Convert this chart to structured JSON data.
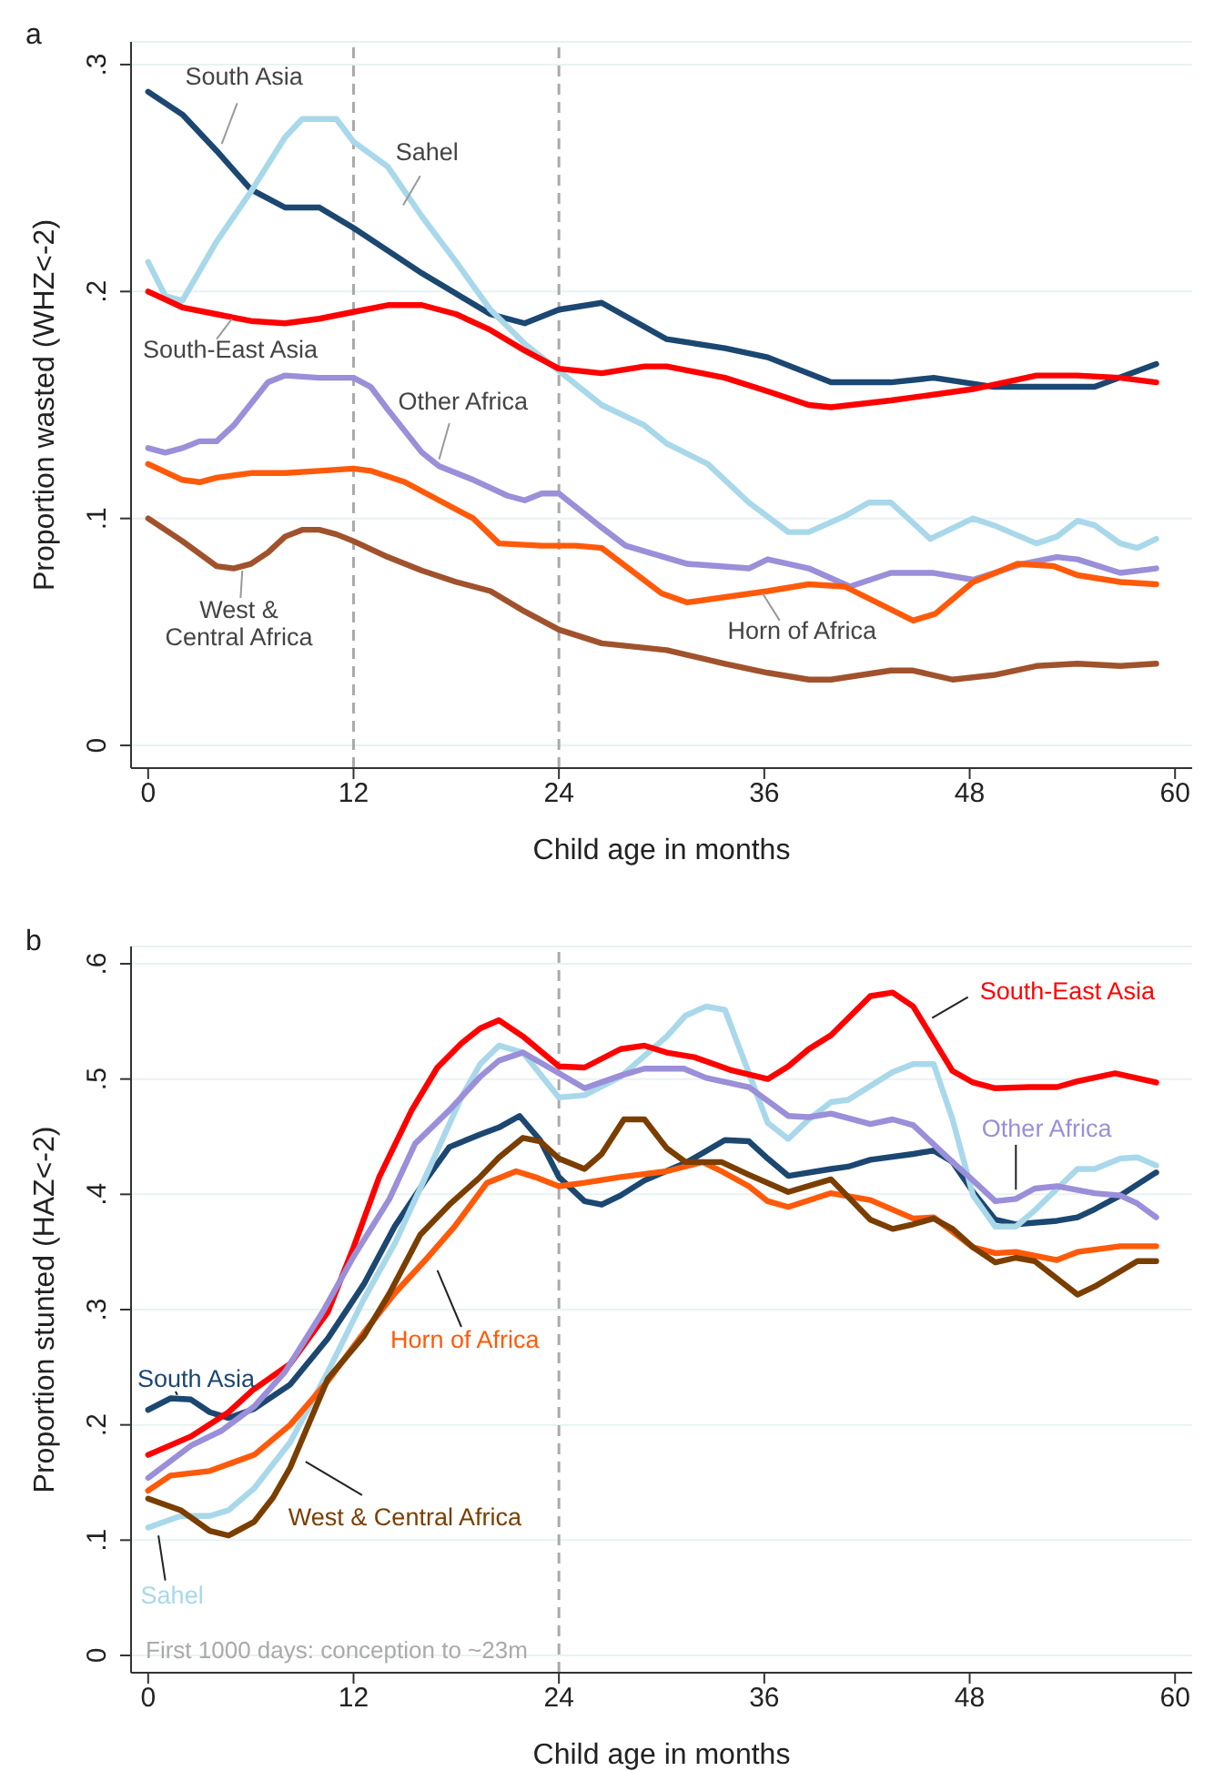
{
  "chart_data": [
    {
      "type": "line",
      "title": "a",
      "xlabel": "Child age in months",
      "ylabel": "Proportion wasted (WHZ<-2)",
      "xlim": [
        -1,
        61
      ],
      "xticks": [
        0,
        12,
        24,
        36,
        48,
        60
      ],
      "ylim": [
        -0.01,
        0.31
      ],
      "yticks": [
        0,
        {
          "value": 0.1,
          "label": ".1"
        },
        {
          "value": 0.2,
          "label": ".2"
        },
        {
          "value": 0.3,
          "label": ".3"
        }
      ],
      "grid": "y",
      "ref_lines": [
        {
          "axis": "x",
          "value": 12,
          "color": "#aaaaaa",
          "line_style": "dashed"
        },
        {
          "axis": "x",
          "value": 24,
          "color": "#aaaaaa",
          "line_style": "dashed"
        }
      ],
      "series": [
        {
          "name": "South Asia",
          "color": "#1b4771",
          "x": [
            0,
            2,
            4,
            6,
            8,
            10,
            12,
            14,
            16,
            18,
            20,
            22,
            24,
            26.5,
            30.3,
            33.7,
            36.2,
            39.9,
            43.4,
            45.9,
            49.4,
            52,
            55.3,
            58.9
          ],
          "values": [
            0.288,
            0.278,
            0.262,
            0.245,
            0.237,
            0.237,
            0.228,
            0.218,
            0.208,
            0.199,
            0.19,
            0.186,
            0.192,
            0.195,
            0.179,
            0.175,
            0.171,
            0.16,
            0.16,
            0.162,
            0.158,
            0.158,
            0.158,
            0.168
          ]
        },
        {
          "name": "Sahel",
          "color": "#a8d8ea",
          "x": [
            0,
            1,
            2,
            4,
            6,
            8,
            9,
            11,
            12,
            14,
            16,
            18,
            20,
            22,
            24,
            26.5,
            29,
            30.3,
            32.7,
            35.1,
            37.4,
            38.6,
            40.7,
            42.1,
            43.4,
            45.7,
            48.2,
            49.4,
            51.9,
            53.1,
            54.3,
            55.3,
            56.8,
            57.8,
            58.9
          ],
          "values": [
            0.213,
            0.198,
            0.196,
            0.222,
            0.244,
            0.268,
            0.276,
            0.276,
            0.266,
            0.255,
            0.233,
            0.213,
            0.192,
            0.177,
            0.165,
            0.15,
            0.141,
            0.133,
            0.124,
            0.107,
            0.094,
            0.094,
            0.101,
            0.107,
            0.107,
            0.091,
            0.1,
            0.097,
            0.089,
            0.092,
            0.099,
            0.097,
            0.089,
            0.087,
            0.091
          ]
        },
        {
          "name": "South-East Asia",
          "color": "#ff0000",
          "x": [
            0,
            2,
            4,
            6,
            8,
            10,
            12,
            14,
            16,
            18,
            20,
            22,
            24,
            26.5,
            29,
            30.3,
            33.7,
            36.2,
            38.6,
            39.9,
            43.4,
            48.2,
            51.9,
            54.3,
            56.8,
            58.9
          ],
          "values": [
            0.2,
            0.193,
            0.19,
            0.187,
            0.186,
            0.188,
            0.191,
            0.194,
            0.194,
            0.19,
            0.183,
            0.174,
            0.166,
            0.164,
            0.167,
            0.167,
            0.162,
            0.156,
            0.15,
            0.149,
            0.152,
            0.157,
            0.163,
            0.163,
            0.162,
            0.16
          ]
        },
        {
          "name": "Other Africa",
          "color": "#9a8fd8",
          "x": [
            0,
            1,
            2,
            3,
            4,
            5,
            7,
            8,
            10,
            12,
            13,
            14,
            16,
            17,
            19,
            21,
            22,
            23,
            24,
            26.5,
            27.9,
            31.5,
            35.1,
            36.2,
            38.6,
            41,
            43.4,
            45.9,
            48.2,
            51.1,
            53.1,
            54.3,
            56.8,
            58.9
          ],
          "values": [
            0.131,
            0.129,
            0.131,
            0.134,
            0.134,
            0.141,
            0.16,
            0.163,
            0.162,
            0.162,
            0.158,
            0.148,
            0.129,
            0.123,
            0.117,
            0.11,
            0.108,
            0.111,
            0.111,
            0.096,
            0.088,
            0.08,
            0.078,
            0.082,
            0.078,
            0.07,
            0.076,
            0.076,
            0.073,
            0.08,
            0.083,
            0.082,
            0.076,
            0.078
          ]
        },
        {
          "name": "Horn of Africa",
          "color": "#ff5a0a",
          "x": [
            0,
            2,
            3,
            4,
            6,
            8,
            10,
            12,
            13,
            15,
            17,
            19,
            20.5,
            23,
            25,
            26.5,
            30,
            31.5,
            36.2,
            38.6,
            40.7,
            44.7,
            46,
            48.2,
            50.8,
            52.9,
            54.3,
            56.8,
            58.9
          ],
          "values": [
            0.124,
            0.117,
            0.116,
            0.118,
            0.12,
            0.12,
            0.121,
            0.122,
            0.121,
            0.116,
            0.108,
            0.1,
            0.089,
            0.088,
            0.088,
            0.087,
            0.067,
            0.063,
            0.068,
            0.071,
            0.07,
            0.055,
            0.058,
            0.072,
            0.08,
            0.079,
            0.075,
            0.072,
            0.071
          ]
        },
        {
          "name": "West & Central Africa",
          "color": "#a0522d",
          "x": [
            0,
            2,
            4,
            5,
            6,
            7,
            8,
            9,
            10,
            11,
            12,
            14,
            16,
            18,
            20,
            22,
            24,
            26.5,
            30.3,
            33.7,
            36.2,
            38.6,
            39.9,
            43.4,
            44.7,
            47,
            49.4,
            51.9,
            54.3,
            56.8,
            58.9
          ],
          "values": [
            0.1,
            0.09,
            0.079,
            0.078,
            0.08,
            0.085,
            0.092,
            0.095,
            0.095,
            0.093,
            0.09,
            0.083,
            0.077,
            0.072,
            0.068,
            0.059,
            0.051,
            0.045,
            0.042,
            0.036,
            0.032,
            0.029,
            0.029,
            0.033,
            0.033,
            0.029,
            0.031,
            0.035,
            0.036,
            0.035,
            0.036
          ]
        }
      ]
    },
    {
      "type": "line",
      "title": "b",
      "xlabel": "Child age in months",
      "ylabel": "Proportion stunted (HAZ<-2)",
      "xlim": [
        -1,
        61
      ],
      "xticks": [
        0,
        12,
        24,
        36,
        48,
        60
      ],
      "ylim": [
        -0.015,
        0.615
      ],
      "yticks": [
        0,
        {
          "value": 0.1,
          "label": ".1"
        },
        {
          "value": 0.2,
          "label": ".2"
        },
        {
          "value": 0.3,
          "label": ".3"
        },
        {
          "value": 0.4,
          "label": ".4"
        },
        {
          "value": 0.5,
          "label": ".5"
        },
        {
          "value": 0.6,
          "label": ".6"
        }
      ],
      "grid": "y",
      "ref_lines": [
        {
          "axis": "x",
          "value": 24,
          "color": "#aaaaaa",
          "line_style": "dashed"
        }
      ],
      "annotations": [
        "First 1000 days: conception to ~23m"
      ],
      "series": [
        {
          "name": "South Asia",
          "color": "#1b4771",
          "x": [
            0,
            1.3,
            2.5,
            3.6,
            4.7,
            6.2,
            8.3,
            10.5,
            12.6,
            14.4,
            16.2,
            17.6,
            19.4,
            20.5,
            21.7,
            22.9,
            24,
            25.5,
            26.5,
            27.6,
            29,
            31.5,
            33.7,
            35.1,
            36.2,
            37.4,
            39.9,
            40.9,
            42.2,
            44.7,
            45.9,
            47,
            48.2,
            49.5,
            50.7,
            53.1,
            54.3,
            55.3,
            56.8,
            58.9
          ],
          "values": [
            0.213,
            0.223,
            0.222,
            0.211,
            0.206,
            0.214,
            0.235,
            0.275,
            0.322,
            0.372,
            0.412,
            0.441,
            0.452,
            0.458,
            0.468,
            0.447,
            0.415,
            0.394,
            0.391,
            0.399,
            0.412,
            0.428,
            0.447,
            0.446,
            0.431,
            0.416,
            0.422,
            0.424,
            0.43,
            0.435,
            0.438,
            0.428,
            0.402,
            0.378,
            0.374,
            0.377,
            0.38,
            0.387,
            0.399,
            0.419
          ]
        },
        {
          "name": "Sahel",
          "color": "#a8d8ea",
          "x": [
            0,
            1.9,
            3.6,
            4.7,
            6.2,
            8.3,
            10.5,
            12.6,
            14.4,
            16.2,
            18.3,
            19.4,
            20.5,
            21.9,
            24,
            25.5,
            27.6,
            30.3,
            31.4,
            32.6,
            33.7,
            36.2,
            37.4,
            38.6,
            39.9,
            40.9,
            42.2,
            43.5,
            44.7,
            45.9,
            47,
            48.2,
            49.5,
            50.7,
            51.8,
            54.3,
            55.3,
            56.8,
            57.8,
            58.9
          ],
          "values": [
            0.111,
            0.121,
            0.121,
            0.126,
            0.145,
            0.185,
            0.246,
            0.309,
            0.357,
            0.415,
            0.484,
            0.513,
            0.529,
            0.523,
            0.484,
            0.486,
            0.502,
            0.537,
            0.555,
            0.563,
            0.56,
            0.462,
            0.448,
            0.465,
            0.48,
            0.482,
            0.494,
            0.506,
            0.513,
            0.513,
            0.465,
            0.399,
            0.372,
            0.372,
            0.386,
            0.422,
            0.422,
            0.431,
            0.432,
            0.425
          ]
        },
        {
          "name": "South-East Asia",
          "color": "#ff0000",
          "x": [
            0,
            2.5,
            4.7,
            6.1,
            8.3,
            10.5,
            12,
            13.5,
            15.4,
            16.9,
            18.3,
            19.4,
            20.5,
            21.9,
            24,
            25.5,
            27.6,
            29,
            30.3,
            31.9,
            34,
            36.2,
            37.4,
            38.6,
            39.9,
            42.2,
            43.5,
            44.7,
            47,
            48.2,
            49.5,
            51.5,
            53.1,
            54.3,
            56.5,
            58.9
          ],
          "values": [
            0.174,
            0.19,
            0.211,
            0.23,
            0.253,
            0.298,
            0.354,
            0.415,
            0.473,
            0.51,
            0.531,
            0.544,
            0.551,
            0.537,
            0.511,
            0.51,
            0.526,
            0.529,
            0.523,
            0.519,
            0.508,
            0.5,
            0.511,
            0.526,
            0.538,
            0.572,
            0.575,
            0.563,
            0.507,
            0.497,
            0.492,
            0.493,
            0.493,
            0.498,
            0.505,
            0.497
          ]
        },
        {
          "name": "Other Africa",
          "color": "#9a8fd8",
          "x": [
            0,
            2.5,
            4.3,
            6.2,
            8,
            10.2,
            12,
            14.1,
            15.6,
            17.6,
            19.4,
            20.5,
            21.9,
            24,
            25.5,
            27.6,
            29,
            31.3,
            32.6,
            35.1,
            37.4,
            38.6,
            39.9,
            42.2,
            43.5,
            44.7,
            47,
            48.2,
            49.5,
            50.7,
            51.8,
            53.1,
            55.3,
            56.8,
            57.8,
            58.9
          ],
          "values": [
            0.154,
            0.182,
            0.195,
            0.216,
            0.246,
            0.298,
            0.346,
            0.396,
            0.444,
            0.473,
            0.502,
            0.516,
            0.523,
            0.505,
            0.492,
            0.503,
            0.509,
            0.509,
            0.501,
            0.493,
            0.468,
            0.467,
            0.47,
            0.461,
            0.465,
            0.46,
            0.428,
            0.412,
            0.394,
            0.396,
            0.405,
            0.407,
            0.401,
            0.399,
            0.392,
            0.38
          ]
        },
        {
          "name": "Horn of Africa",
          "color": "#ff5a0a",
          "x": [
            0,
            1.3,
            3.6,
            4.7,
            6.2,
            8.3,
            10.5,
            12.6,
            14.4,
            16.2,
            17.9,
            19.8,
            21.5,
            22.6,
            24,
            25.5,
            27.6,
            30.3,
            32.4,
            33.5,
            35.1,
            36.2,
            37.4,
            39.9,
            42.2,
            44.7,
            45.9,
            48.2,
            49.5,
            50.7,
            53.1,
            54.3,
            56.8,
            58.9
          ],
          "values": [
            0.143,
            0.156,
            0.16,
            0.166,
            0.174,
            0.2,
            0.238,
            0.28,
            0.314,
            0.343,
            0.372,
            0.41,
            0.42,
            0.415,
            0.407,
            0.41,
            0.415,
            0.42,
            0.428,
            0.42,
            0.407,
            0.394,
            0.389,
            0.401,
            0.395,
            0.379,
            0.38,
            0.354,
            0.349,
            0.35,
            0.343,
            0.35,
            0.355,
            0.355
          ]
        },
        {
          "name": "West & Central Africa",
          "color": "#7a3e00",
          "x": [
            0,
            1.9,
            3.6,
            4.7,
            6.2,
            7.3,
            8.3,
            10.5,
            12.6,
            14.1,
            15.9,
            17.6,
            19.4,
            20.5,
            21.9,
            22.9,
            24,
            25.5,
            26.5,
            27.8,
            29,
            30.3,
            31.4,
            33.5,
            35.1,
            37.4,
            39.9,
            42.2,
            43.5,
            44.7,
            45.9,
            47,
            48.2,
            49.5,
            50.7,
            51.8,
            54.3,
            55.3,
            57.8,
            58.9
          ],
          "values": [
            0.136,
            0.126,
            0.108,
            0.104,
            0.116,
            0.137,
            0.163,
            0.24,
            0.277,
            0.314,
            0.365,
            0.391,
            0.415,
            0.432,
            0.449,
            0.446,
            0.431,
            0.422,
            0.435,
            0.465,
            0.465,
            0.44,
            0.428,
            0.428,
            0.417,
            0.402,
            0.413,
            0.378,
            0.37,
            0.374,
            0.379,
            0.37,
            0.354,
            0.341,
            0.345,
            0.342,
            0.313,
            0.32,
            0.342,
            0.342
          ]
        }
      ]
    }
  ]
}
